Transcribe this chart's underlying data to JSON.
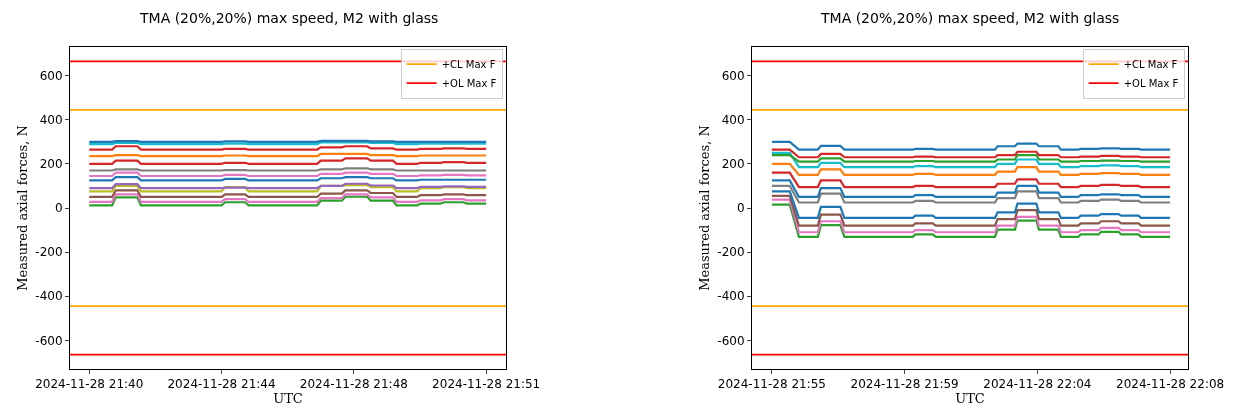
{
  "chart_data": [
    {
      "type": "line",
      "title": "TMA (20%,20%) max speed, M2 with glass",
      "xlabel": "UTC",
      "ylabel": "Measured axial forces, N",
      "x": [
        "2024-11-28T21:40:20",
        "2024-11-28T21:40:58",
        "2024-11-28T21:41:04",
        "2024-11-28T21:41:40",
        "2024-11-28T21:41:46",
        "2024-11-28T21:44:00",
        "2024-11-28T21:44:06",
        "2024-11-28T21:44:39",
        "2024-11-28T21:44:45",
        "2024-11-28T21:46:39",
        "2024-11-28T21:46:45",
        "2024-11-28T21:47:20",
        "2024-11-28T21:47:26",
        "2024-11-28T21:48:02",
        "2024-11-28T21:48:08",
        "2024-11-28T21:48:45",
        "2024-11-28T21:48:51",
        "2024-11-28T21:49:25",
        "2024-11-28T21:49:31",
        "2024-11-28T21:50:04",
        "2024-11-28T21:50:10",
        "2024-11-28T21:50:42",
        "2024-11-28T21:50:48",
        "2024-11-28T21:51:20"
      ],
      "series": [
        {
          "color": "#2ca02c",
          "values": [
            12,
            12,
            48,
            48,
            12,
            12,
            26,
            26,
            12,
            12,
            33,
            33,
            51,
            51,
            33,
            33,
            12,
            12,
            20,
            20,
            26,
            26,
            20,
            20
          ]
        },
        {
          "color": "#e377c2",
          "values": [
            28,
            28,
            62,
            62,
            28,
            28,
            40,
            40,
            28,
            28,
            45,
            45,
            62,
            62,
            48,
            48,
            28,
            28,
            35,
            35,
            40,
            40,
            35,
            35
          ]
        },
        {
          "color": "#8c564b",
          "values": [
            50,
            50,
            80,
            80,
            50,
            50,
            62,
            62,
            50,
            50,
            65,
            65,
            80,
            80,
            68,
            68,
            50,
            50,
            58,
            58,
            62,
            62,
            58,
            58
          ]
        },
        {
          "color": "#bcbd22",
          "values": [
            75,
            75,
            100,
            100,
            75,
            75,
            95,
            95,
            75,
            75,
            100,
            100,
            104,
            104,
            95,
            95,
            75,
            75,
            90,
            90,
            95,
            95,
            90,
            90
          ]
        },
        {
          "color": "#9467bd",
          "values": [
            90,
            90,
            108,
            108,
            90,
            90,
            92,
            92,
            90,
            90,
            100,
            100,
            110,
            110,
            102,
            102,
            90,
            90,
            96,
            96,
            98,
            98,
            96,
            96
          ]
        },
        {
          "color": "#1f77b4",
          "values": [
            125,
            125,
            140,
            140,
            125,
            125,
            132,
            132,
            125,
            125,
            135,
            135,
            140,
            140,
            135,
            135,
            125,
            125,
            128,
            128,
            128,
            128,
            128,
            128
          ]
        },
        {
          "color": "#e377c2",
          "values": [
            145,
            145,
            160,
            160,
            145,
            145,
            150,
            150,
            145,
            145,
            155,
            155,
            160,
            160,
            155,
            155,
            145,
            145,
            148,
            148,
            150,
            150,
            148,
            148
          ]
        },
        {
          "color": "#7f7f7f",
          "values": [
            170,
            170,
            175,
            175,
            170,
            170,
            172,
            172,
            170,
            170,
            175,
            175,
            180,
            180,
            175,
            175,
            170,
            170,
            170,
            170,
            170,
            170,
            170,
            170
          ]
        },
        {
          "color": "#d62728",
          "values": [
            200,
            200,
            215,
            215,
            200,
            200,
            205,
            205,
            200,
            200,
            215,
            215,
            225,
            225,
            215,
            215,
            200,
            200,
            205,
            205,
            208,
            208,
            205,
            205
          ]
        },
        {
          "color": "#ff7f0e",
          "values": [
            235,
            235,
            240,
            240,
            235,
            235,
            238,
            238,
            235,
            235,
            245,
            245,
            245,
            245,
            240,
            240,
            235,
            235,
            238,
            238,
            238,
            238,
            238,
            238
          ]
        },
        {
          "color": "#d62728",
          "values": [
            265,
            265,
            280,
            280,
            265,
            265,
            268,
            268,
            265,
            265,
            275,
            275,
            280,
            280,
            270,
            270,
            265,
            265,
            268,
            268,
            270,
            270,
            268,
            268
          ]
        },
        {
          "color": "#17becf",
          "values": [
            290,
            290,
            295,
            295,
            290,
            290,
            292,
            292,
            290,
            290,
            297,
            297,
            297,
            297,
            295,
            295,
            290,
            290,
            292,
            292,
            292,
            292,
            292,
            292
          ]
        },
        {
          "color": "#1f77b4",
          "values": [
            300,
            300,
            303,
            303,
            300,
            300,
            302,
            302,
            300,
            300,
            304,
            304,
            304,
            304,
            302,
            302,
            300,
            300,
            300,
            300,
            300,
            300,
            300,
            300
          ]
        }
      ],
      "ref_lines": [
        {
          "axis": "y",
          "value": 445,
          "label": "+CL Max F",
          "color": "#ffa500"
        },
        {
          "axis": "y",
          "value": 665,
          "label": "+OL Max F",
          "color": "#ff0000"
        },
        {
          "axis": "y",
          "value": -445,
          "color": "#ffa500"
        },
        {
          "axis": "y",
          "value": -665,
          "color": "#ff0000"
        }
      ],
      "xlim": [
        "2024-11-28T21:39:48",
        "2024-11-28T21:51:53"
      ],
      "xticks": [
        {
          "value": "2024-11-28T21:40:20",
          "label": "2024-11-28 21:40"
        },
        {
          "value": "2024-11-28T21:44:00",
          "label": "2024-11-28 21:44"
        },
        {
          "value": "2024-11-28T21:47:40",
          "label": "2024-11-28 21:48"
        },
        {
          "value": "2024-11-28T21:51:20",
          "label": "2024-11-28 21:51"
        }
      ],
      "ylim": [
        -730,
        730
      ],
      "yticks": [
        -600,
        -400,
        -200,
        0,
        200,
        400,
        600
      ],
      "legend": "top right",
      "marker": "none",
      "line_style": "solid"
    },
    {
      "type": "line",
      "title": "TMA (20%,20%) max speed, M2 with glass",
      "xlabel": "UTC",
      "ylabel": "Measured axial forces, N",
      "x": [
        "2024-11-28T21:55:00",
        "2024-11-28T21:55:35",
        "2024-11-28T21:55:53",
        "2024-11-28T21:56:30",
        "2024-11-28T21:56:36",
        "2024-11-28T21:57:14",
        "2024-11-28T21:57:22",
        "2024-11-28T21:59:36",
        "2024-11-28T21:59:41",
        "2024-11-28T22:00:15",
        "2024-11-28T22:00:21",
        "2024-11-28T22:02:17",
        "2024-11-28T22:02:22",
        "2024-11-28T22:02:56",
        "2024-11-28T22:03:01",
        "2024-11-28T22:03:38",
        "2024-11-28T22:03:43",
        "2024-11-28T22:04:21",
        "2024-11-28T22:04:26",
        "2024-11-28T22:05:00",
        "2024-11-28T22:05:05",
        "2024-11-28T22:05:40",
        "2024-11-28T22:05:45",
        "2024-11-28T22:06:19",
        "2024-11-28T22:06:24",
        "2024-11-28T22:06:58",
        "2024-11-28T22:07:03",
        "2024-11-28T22:08:00"
      ],
      "series": [
        {
          "color": "#2ca02c",
          "values": [
            15,
            15,
            -131,
            -131,
            -78,
            -78,
            -131,
            -131,
            -120,
            -120,
            -131,
            -131,
            -98,
            -98,
            -57,
            -57,
            -98,
            -98,
            -131,
            -131,
            -120,
            -120,
            -108,
            -108,
            -120,
            -120,
            -131,
            -131
          ]
        },
        {
          "color": "#e377c2",
          "values": [
            38,
            38,
            -110,
            -110,
            -60,
            -60,
            -110,
            -110,
            -100,
            -100,
            -110,
            -110,
            -80,
            -80,
            -40,
            -40,
            -80,
            -80,
            -110,
            -110,
            -100,
            -100,
            -90,
            -90,
            -100,
            -100,
            -110,
            -110
          ]
        },
        {
          "color": "#8c564b",
          "values": [
            55,
            55,
            -80,
            -80,
            -30,
            -30,
            -80,
            -80,
            -70,
            -70,
            -80,
            -80,
            -50,
            -50,
            -10,
            -10,
            -50,
            -50,
            -80,
            -80,
            -70,
            -70,
            -60,
            -60,
            -70,
            -70,
            -80,
            -80
          ]
        },
        {
          "color": "#1f77b4",
          "values": [
            75,
            75,
            -45,
            -45,
            5,
            5,
            -45,
            -45,
            -35,
            -35,
            -45,
            -45,
            -20,
            -20,
            20,
            20,
            -20,
            -20,
            -45,
            -45,
            -35,
            -35,
            -28,
            -28,
            -35,
            -35,
            -45,
            -45
          ]
        },
        {
          "color": "#7f7f7f",
          "values": [
            100,
            100,
            25,
            25,
            65,
            65,
            25,
            25,
            32,
            32,
            25,
            25,
            45,
            45,
            75,
            75,
            45,
            45,
            25,
            25,
            32,
            32,
            38,
            38,
            32,
            32,
            25,
            25
          ]
        },
        {
          "color": "#1f77b4",
          "values": [
            125,
            125,
            50,
            50,
            90,
            90,
            50,
            50,
            58,
            58,
            50,
            50,
            70,
            70,
            100,
            100,
            70,
            70,
            50,
            50,
            58,
            58,
            62,
            62,
            58,
            58,
            50,
            50
          ]
        },
        {
          "color": "#d62728",
          "values": [
            160,
            160,
            95,
            95,
            125,
            125,
            95,
            95,
            100,
            100,
            95,
            95,
            110,
            110,
            130,
            130,
            110,
            110,
            95,
            95,
            100,
            100,
            105,
            105,
            100,
            100,
            95,
            95
          ]
        },
        {
          "color": "#ff7f0e",
          "values": [
            200,
            200,
            150,
            150,
            175,
            175,
            150,
            150,
            155,
            155,
            150,
            150,
            165,
            165,
            185,
            185,
            165,
            165,
            150,
            150,
            155,
            155,
            158,
            158,
            155,
            155,
            150,
            150
          ]
        },
        {
          "color": "#17becf",
          "values": [
            250,
            250,
            185,
            185,
            205,
            205,
            185,
            185,
            190,
            190,
            185,
            185,
            200,
            200,
            220,
            220,
            200,
            200,
            185,
            185,
            190,
            190,
            193,
            193,
            190,
            190,
            185,
            185
          ]
        },
        {
          "color": "#2ca02c",
          "values": [
            240,
            240,
            210,
            210,
            225,
            225,
            210,
            210,
            213,
            213,
            210,
            210,
            220,
            220,
            240,
            240,
            220,
            220,
            210,
            210,
            213,
            213,
            215,
            215,
            213,
            213,
            210,
            210
          ]
        },
        {
          "color": "#d62728",
          "values": [
            265,
            265,
            230,
            230,
            245,
            245,
            230,
            230,
            233,
            233,
            230,
            230,
            240,
            240,
            255,
            255,
            240,
            240,
            230,
            230,
            233,
            233,
            236,
            236,
            233,
            233,
            230,
            230
          ]
        },
        {
          "color": "#1f77b4",
          "values": [
            300,
            300,
            265,
            265,
            282,
            282,
            265,
            265,
            268,
            268,
            265,
            265,
            280,
            280,
            292,
            292,
            280,
            280,
            265,
            265,
            268,
            268,
            270,
            270,
            268,
            268,
            265,
            265
          ]
        }
      ],
      "ref_lines": [
        {
          "axis": "y",
          "value": 445,
          "label": "+CL Max F",
          "color": "#ffa500"
        },
        {
          "axis": "y",
          "value": 665,
          "label": "+OL Max F",
          "color": "#ff0000"
        },
        {
          "axis": "y",
          "value": -445,
          "color": "#ffa500"
        },
        {
          "axis": "y",
          "value": -665,
          "color": "#ff0000"
        }
      ],
      "xlim": [
        "2024-11-28T21:54:21",
        "2024-11-28T22:08:35"
      ],
      "xticks": [
        {
          "value": "2024-11-28T21:55:00",
          "label": "2024-11-28 21:55"
        },
        {
          "value": "2024-11-28T21:59:20",
          "label": "2024-11-28 21:59"
        },
        {
          "value": "2024-11-28T22:03:40",
          "label": "2024-11-28 22:04"
        },
        {
          "value": "2024-11-28T22:08:00",
          "label": "2024-11-28 22:08"
        }
      ],
      "ylim": [
        -730,
        730
      ],
      "yticks": [
        -600,
        -400,
        -200,
        0,
        200,
        400,
        600
      ],
      "legend": "top right",
      "marker": "none",
      "line_style": "solid"
    }
  ]
}
